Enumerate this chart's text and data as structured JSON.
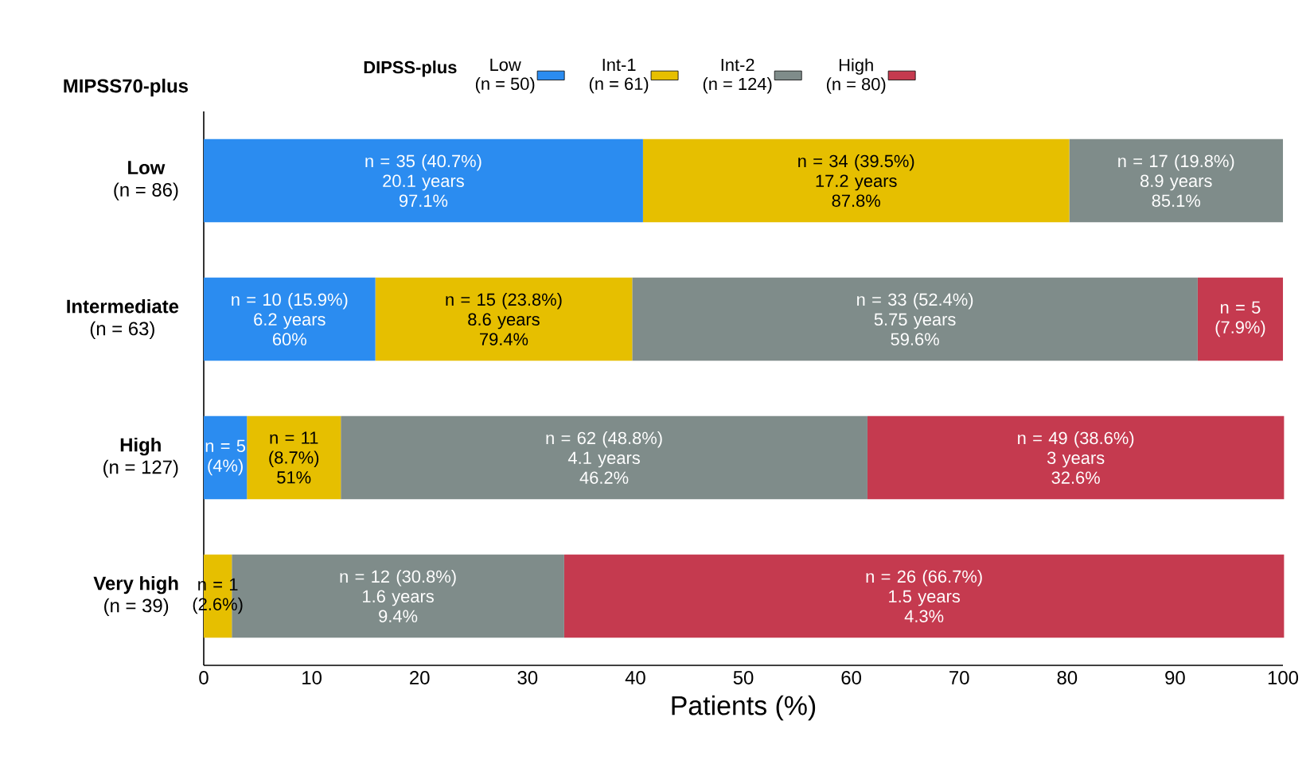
{
  "chart_data": {
    "type": "bar",
    "orientation": "horizontal",
    "stacked": true,
    "ylabel": "MIPSS70-plus",
    "xlabel": "Patients (%)",
    "legend_title": "DIPSS-plus",
    "legend": "top",
    "categories": [
      "**Low**\n(n = 86)",
      "**Intermediate**\n(n = 63)",
      "**High**\n(n = 127)",
      "**Very high**\n(n = 39)"
    ],
    "xlim": [
      0,
      100
    ],
    "xticks": [
      0,
      10,
      20,
      30,
      40,
      50,
      60,
      70,
      80,
      90,
      100
    ],
    "series": [
      {
        "name": "Low\n(n = 50)",
        "color": "#2b8cf0",
        "values": [
          40.7,
          15.9,
          4,
          null
        ],
        "value_labels": [
          "n = 35 (40.7%)\n20.1 years\n97.1%",
          "n = 10 (15.9%)\n6.2 years\n60%",
          "n = 5\n(4%)",
          null
        ]
      },
      {
        "name": "Int-1\n(n = 61)",
        "color": "#e6bf00",
        "values": [
          39.5,
          23.8,
          8.7,
          2.6
        ],
        "value_labels": [
          "n = 34 (39.5%)\n17.2 years\n87.8%",
          "n = 15 (23.8%)\n8.6 years\n79.4%",
          "n = 11\n(8.7%)\n51%",
          "n = 1\n(2.6%)"
        ]
      },
      {
        "name": "Int-2\n(n = 124)",
        "color": "#7f8c8a",
        "values": [
          19.8,
          52.4,
          48.8,
          30.8
        ],
        "value_labels": [
          "n = 17 (19.8%)\n8.9 years\n85.1%",
          "n = 33 (52.4%)\n5.75 years\n59.6%",
          "n = 62 (48.8%)\n4.1 years\n46.2%",
          "n = 12 (30.8%)\n1.6 years\n9.4%"
        ]
      },
      {
        "name": "High\n(n = 80)",
        "color": "#c53a4f",
        "values": [
          null,
          7.9,
          38.6,
          66.7
        ],
        "value_labels": [
          null,
          "n = 5\n(7.9%)",
          "n = 49 (38.6%)\n3 years\n32.6%",
          "n = 26 (66.7%)\n1.5 years\n4.3%"
        ]
      }
    ]
  }
}
